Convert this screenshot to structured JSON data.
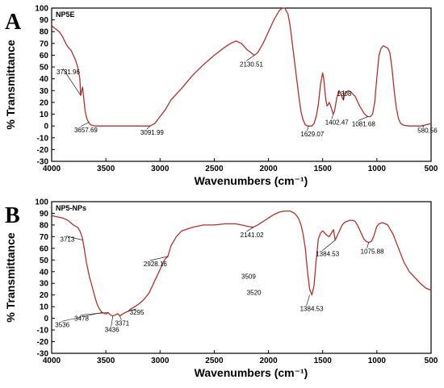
{
  "chart_data": [
    {
      "type": "line",
      "panel": "A",
      "sample_label": "NP5E",
      "xlabel": "Wavenumbers (cm⁻¹)",
      "ylabel": "% Transmittance",
      "xlim": [
        4000,
        500
      ],
      "ylim": [
        -30,
        100
      ],
      "x_ticks": [
        4000,
        3500,
        3000,
        2500,
        2000,
        1500,
        1000,
        500
      ],
      "y_ticks": [
        -30,
        -20,
        -10,
        0,
        10,
        20,
        30,
        40,
        50,
        60,
        70,
        80,
        90,
        100
      ],
      "line_color": "#b5302a",
      "series": [
        {
          "x": [
            4000,
            3960,
            3930,
            3900,
            3870,
            3850,
            3820,
            3800,
            3780,
            3760,
            3740,
            3731.96,
            3715,
            3700,
            3690,
            3680,
            3670,
            3657.69,
            3640,
            3600,
            3500,
            3400,
            3300,
            3200,
            3091.99,
            3050,
            3000,
            2950,
            2900,
            2800,
            2700,
            2600,
            2500,
            2400,
            2350,
            2300,
            2250,
            2200,
            2130.51,
            2100,
            2050,
            2000,
            1950,
            1900,
            1870,
            1850,
            1820,
            1800,
            1780,
            1760,
            1740,
            1720,
            1700,
            1680,
            1660,
            1640,
            1629.07,
            1600,
            1580,
            1560,
            1540,
            1520,
            1500,
            1490,
            1480,
            1470,
            1460,
            1450,
            1440,
            1430,
            1420,
            1402.47,
            1390,
            1370,
            1350,
            1330,
            1320,
            1308,
            1300,
            1280,
            1260,
            1240,
            1220,
            1200,
            1180,
            1160,
            1140,
            1120,
            1100,
            1081.68,
            1060,
            1040,
            1020,
            1000,
            980,
            960,
            940,
            920,
            900,
            880,
            860,
            840,
            820,
            800,
            780,
            750,
            700,
            650,
            600,
            580.56,
            550,
            500
          ],
          "y": [
            85,
            82,
            80,
            76,
            70,
            67,
            64,
            60,
            56,
            50,
            40,
            26,
            33,
            20,
            12,
            8,
            5,
            3,
            1,
            0,
            0,
            0,
            0,
            0,
            0,
            2,
            8,
            14,
            22,
            32,
            43,
            52,
            60,
            67,
            70,
            72,
            70,
            65,
            60,
            62,
            70,
            80,
            90,
            98,
            100,
            100,
            95,
            85,
            70,
            55,
            40,
            25,
            12,
            5,
            1,
            0,
            0,
            0,
            2,
            8,
            18,
            35,
            45,
            40,
            30,
            22,
            17,
            18,
            20,
            18,
            15,
            10,
            13,
            24,
            30,
            27,
            24,
            22,
            26,
            29,
            30,
            29,
            27,
            25,
            21,
            17,
            14,
            11,
            9,
            8,
            8,
            10,
            20,
            42,
            60,
            66,
            68,
            67,
            66,
            62,
            48,
            30,
            15,
            6,
            2,
            0.5,
            0,
            0,
            0,
            0,
            1,
            2
          ]
        }
      ],
      "annotations": [
        {
          "label": "3731.96",
          "x": 3731.96,
          "y": 26
        },
        {
          "label": "3657.69",
          "x": 3657.69,
          "y": 3
        },
        {
          "label": "3091.99",
          "x": 3091.99,
          "y": 0
        },
        {
          "label": "2130.51",
          "x": 2130.51,
          "y": 60
        },
        {
          "label": "1629.07",
          "x": 1629.07,
          "y": 0
        },
        {
          "label": "1402.47",
          "x": 1402.47,
          "y": 10
        },
        {
          "label": "1308",
          "x": 1308,
          "y": 22
        },
        {
          "label": "1081.68",
          "x": 1081.68,
          "y": 8
        },
        {
          "label": "580.56",
          "x": 580.56,
          "y": 1
        }
      ]
    },
    {
      "type": "line",
      "panel": "B",
      "sample_label": "NP5-NPs",
      "xlabel": "Wavenumbers (cm⁻¹)",
      "ylabel": "% Transmittance",
      "xlim": [
        4000,
        500
      ],
      "ylim": [
        -30,
        100
      ],
      "x_ticks": [
        4000,
        3500,
        3000,
        2500,
        2000,
        1500,
        1000,
        500
      ],
      "y_ticks": [
        -30,
        -20,
        -10,
        0,
        10,
        20,
        30,
        40,
        50,
        60,
        70,
        80,
        90,
        100
      ],
      "line_color": "#b5302a",
      "series": [
        {
          "x": [
            4000,
            3950,
            3900,
            3850,
            3800,
            3760,
            3740,
            3720,
            3713,
            3700,
            3680,
            3650,
            3620,
            3600,
            3580,
            3560,
            3536,
            3510,
            3490,
            3478,
            3460,
            3436,
            3410,
            3390,
            3371,
            3340,
            3320,
            3295,
            3270,
            3250,
            3200,
            3150,
            3100,
            3050,
            3000,
            2960,
            2940,
            2928.16,
            2900,
            2850,
            2800,
            2700,
            2600,
            2500,
            2400,
            2300,
            2250,
            2200,
            2141.02,
            2100,
            2050,
            2000,
            1950,
            1900,
            1850,
            1800,
            1780,
            1760,
            1740,
            1720,
            1700,
            1680,
            1660,
            1640,
            1620,
            1600,
            1580,
            1560,
            1540,
            1520,
            1500,
            1480,
            1460,
            1440,
            1420,
            1400,
            1384.53,
            1370,
            1350,
            1320,
            1300,
            1280,
            1250,
            1220,
            1200,
            1180,
            1160,
            1140,
            1120,
            1100,
            1075.88,
            1050,
            1030,
            1010,
            1000,
            980,
            950,
            920,
            900,
            850,
            800,
            750,
            700,
            650,
            600,
            550,
            500
          ],
          "y": [
            88,
            87,
            86,
            84,
            80,
            78,
            75,
            70,
            67,
            60,
            48,
            35,
            25,
            18,
            12,
            8,
            5,
            4,
            4,
            5,
            3,
            2,
            3,
            4,
            2,
            4,
            5,
            6,
            8,
            9,
            12,
            16,
            22,
            32,
            42,
            50,
            52,
            53,
            62,
            70,
            75,
            78,
            80,
            80,
            81,
            81,
            80,
            79,
            78,
            80,
            83,
            86,
            89,
            91,
            92,
            92,
            91,
            90,
            88,
            85,
            80,
            72,
            60,
            40,
            25,
            20,
            28,
            50,
            68,
            73,
            75,
            73,
            71,
            70,
            73,
            76,
            67,
            70,
            74,
            80,
            82,
            83,
            84,
            84,
            83,
            80,
            76,
            72,
            68,
            66,
            65,
            66,
            70,
            76,
            79,
            81,
            82,
            81,
            80,
            72,
            60,
            48,
            40,
            35,
            30,
            26,
            24
          ]
        }
      ],
      "annotations": [
        {
          "label": "3713",
          "x": 3713,
          "y": 67
        },
        {
          "label": "3536",
          "x": 3536,
          "y": 5
        },
        {
          "label": "3478",
          "x": 3478,
          "y": 5
        },
        {
          "label": "3436",
          "x": 3436,
          "y": 2
        },
        {
          "label": "3371",
          "x": 3371,
          "y": 2
        },
        {
          "label": "3295",
          "x": 3295,
          "y": 6
        },
        {
          "label": "2928.16",
          "x": 2928.16,
          "y": 53
        },
        {
          "label": "3509",
          "x": 2250,
          "y": 34
        },
        {
          "label": "3520",
          "x": 2200,
          "y": 20
        },
        {
          "label": "2141.02",
          "x": 2141.02,
          "y": 78
        },
        {
          "label": "1384.53",
          "x": 1620,
          "y": 20
        },
        {
          "label": "1384.53",
          "x": 1384.53,
          "y": 67
        },
        {
          "label": "1075.88",
          "x": 1075.88,
          "y": 65
        }
      ]
    }
  ]
}
